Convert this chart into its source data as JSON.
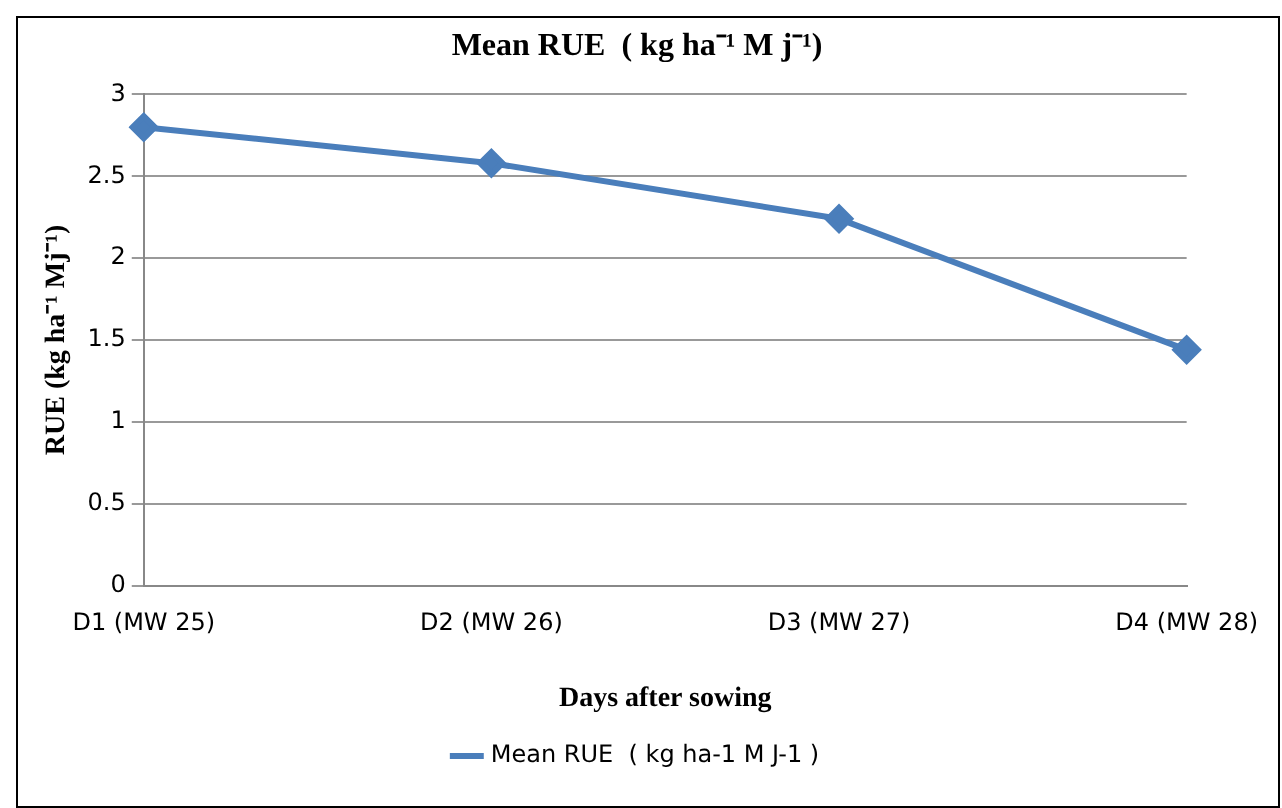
{
  "chart_data": {
    "type": "line",
    "title": "Mean RUE  ( kg ha⁻¹ M j⁻¹)",
    "xlabel": "Days after sowing",
    "ylabel": "RUE (kg ha⁻¹ Mj⁻¹)",
    "categories": [
      "D1 (MW 25)",
      "D2 (MW 26)",
      "D3 (MW 27)",
      "D4 (MW 28)"
    ],
    "series": [
      {
        "name": "Mean RUE  ( kg ha-1 M J-1 )",
        "color": "#4a7ebb",
        "values": [
          2.8,
          2.58,
          2.24,
          1.44
        ]
      }
    ],
    "ylim": [
      0,
      3
    ],
    "yticks": [
      0,
      0.5,
      1,
      1.5,
      2,
      2.5,
      3
    ],
    "grid": "y",
    "legend": "bottom",
    "marker": "diamond",
    "line_style": "solid"
  }
}
